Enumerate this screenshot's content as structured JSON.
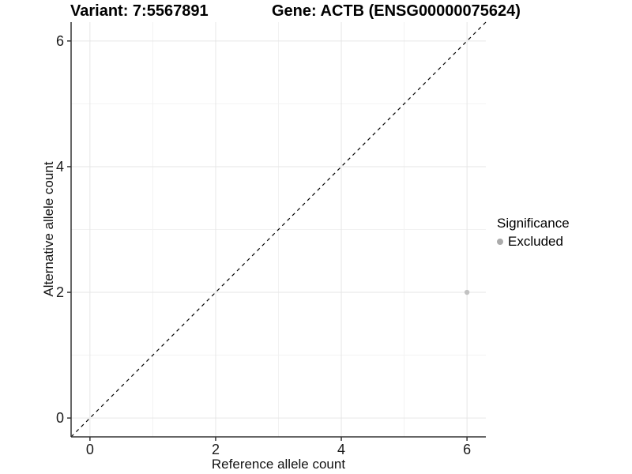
{
  "titles": {
    "variant": "Variant: 7:5567891",
    "gene": "Gene: ACTB (ENSG00000075624)"
  },
  "axes": {
    "x_label": "Reference allele count",
    "y_label": "Alternative allele count"
  },
  "legend": {
    "title": "Significance",
    "items": [
      {
        "label": "Excluded",
        "color": "#ababab"
      }
    ]
  },
  "colors": {
    "background": "#ffffff",
    "axis_line": "#333333",
    "tick_mark": "#333333",
    "tick_label": "#1a1a1a",
    "grid_major": "#e6e6e6",
    "grid_minor": "#f2f2f2",
    "identity_line": "#000000",
    "point": "#c2c2c2"
  },
  "chart_data": {
    "type": "scatter",
    "title_left": "Variant: 7:5567891",
    "title_right": "Gene: ACTB (ENSG00000075624)",
    "xlabel": "Reference allele count",
    "ylabel": "Alternative allele count",
    "xlim": [
      -0.3,
      6.3
    ],
    "ylim": [
      -0.3,
      6.3
    ],
    "x_ticks": [
      0,
      2,
      4,
      6
    ],
    "y_ticks": [
      0,
      2,
      4,
      6
    ],
    "x_minor_ticks": [
      1,
      3,
      5
    ],
    "y_minor_ticks": [
      1,
      3,
      5
    ],
    "grid": true,
    "legend_position": "right",
    "legend_title": "Significance",
    "series": [
      {
        "name": "Excluded",
        "color": "#c2c2c2",
        "points": [
          [
            6,
            2
          ]
        ]
      }
    ],
    "reference_line": {
      "type": "identity",
      "slope": 1,
      "intercept": 0,
      "style": "dashed"
    }
  }
}
